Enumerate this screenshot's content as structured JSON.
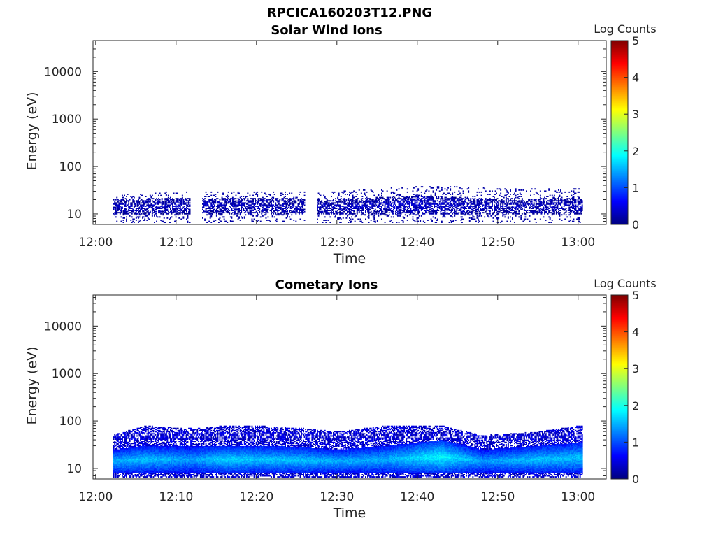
{
  "figure": {
    "title": "RPCICA160203T12.PNG"
  },
  "colormap": [
    "#00007f",
    "#0000ff",
    "#007fff",
    "#00ffff",
    "#7fff7f",
    "#ffff00",
    "#ff7f00",
    "#ff0000",
    "#7f0000"
  ],
  "chart_data": [
    {
      "type": "heatmap",
      "title": "Solar Wind Ions",
      "xlabel": "Time",
      "ylabel": "Energy (eV)",
      "x_range": [
        "11:59:40",
        "13:03:30"
      ],
      "x_ticks": [
        "12:00",
        "12:10",
        "12:20",
        "12:30",
        "12:40",
        "12:50",
        "13:00"
      ],
      "y_scale": "log",
      "y_range": [
        6,
        45000
      ],
      "y_ticks": [
        10,
        100,
        1000,
        10000
      ],
      "y_tick_labels": [
        "10",
        "100",
        "1000",
        "10000"
      ],
      "colorbar": {
        "label": "Log Counts",
        "range": [
          0,
          5
        ],
        "ticks": [
          "0",
          "1",
          "2",
          "3",
          "4",
          "5"
        ]
      },
      "data_time_span": [
        "12:02:10",
        "13:00:30"
      ],
      "gaps": [
        [
          "12:11:40",
          "12:13:10"
        ],
        [
          "12:26:00",
          "12:27:30"
        ]
      ],
      "profile": [
        {
          "t": "12:02",
          "core_low_eV": 10,
          "core_high_eV": 20,
          "top_eV": 25,
          "peak_log_counts": 0.3
        },
        {
          "t": "12:10",
          "core_low_eV": 10,
          "core_high_eV": 22,
          "top_eV": 30,
          "peak_log_counts": 0.3
        },
        {
          "t": "12:20",
          "core_low_eV": 10,
          "core_high_eV": 22,
          "top_eV": 30,
          "peak_log_counts": 0.3
        },
        {
          "t": "12:30",
          "core_low_eV": 10,
          "core_high_eV": 20,
          "top_eV": 30,
          "peak_log_counts": 0.3
        },
        {
          "t": "12:40",
          "core_low_eV": 10,
          "core_high_eV": 25,
          "top_eV": 40,
          "peak_log_counts": 0.4
        },
        {
          "t": "12:50",
          "core_low_eV": 10,
          "core_high_eV": 20,
          "top_eV": 35,
          "peak_log_counts": 0.3
        },
        {
          "t": "13:00",
          "core_low_eV": 10,
          "core_high_eV": 22,
          "top_eV": 35,
          "peak_log_counts": 0.3
        }
      ]
    },
    {
      "type": "heatmap",
      "title": "Cometary Ions",
      "xlabel": "Time",
      "ylabel": "Energy (eV)",
      "x_range": [
        "11:59:40",
        "13:03:30"
      ],
      "x_ticks": [
        "12:00",
        "12:10",
        "12:20",
        "12:30",
        "12:40",
        "12:50",
        "13:00"
      ],
      "y_scale": "log",
      "y_range": [
        6,
        45000
      ],
      "y_ticks": [
        10,
        100,
        1000,
        10000
      ],
      "y_tick_labels": [
        "10",
        "100",
        "1000",
        "10000"
      ],
      "colorbar": {
        "label": "Log Counts",
        "range": [
          0,
          5
        ],
        "ticks": [
          "0",
          "1",
          "2",
          "3",
          "4",
          "5"
        ]
      },
      "data_time_span": [
        "12:02:10",
        "13:00:30"
      ],
      "gaps": [],
      "profile": [
        {
          "t": "12:02",
          "core_low_eV": 8,
          "core_high_eV": 25,
          "top_eV": 50,
          "peak_log_counts": 1.5
        },
        {
          "t": "12:06",
          "core_low_eV": 8,
          "core_high_eV": 30,
          "top_eV": 80,
          "peak_log_counts": 1.6
        },
        {
          "t": "12:12",
          "core_low_eV": 8,
          "core_high_eV": 30,
          "top_eV": 70,
          "peak_log_counts": 1.4
        },
        {
          "t": "12:16",
          "core_low_eV": 8,
          "core_high_eV": 30,
          "top_eV": 80,
          "peak_log_counts": 1.7
        },
        {
          "t": "12:20",
          "core_low_eV": 8,
          "core_high_eV": 30,
          "top_eV": 80,
          "peak_log_counts": 1.6
        },
        {
          "t": "12:26",
          "core_low_eV": 8,
          "core_high_eV": 28,
          "top_eV": 70,
          "peak_log_counts": 1.6
        },
        {
          "t": "12:30",
          "core_low_eV": 8,
          "core_high_eV": 25,
          "top_eV": 60,
          "peak_log_counts": 1.5
        },
        {
          "t": "12:36",
          "core_low_eV": 8,
          "core_high_eV": 30,
          "top_eV": 80,
          "peak_log_counts": 1.5
        },
        {
          "t": "12:43",
          "core_low_eV": 8,
          "core_high_eV": 40,
          "top_eV": 80,
          "peak_log_counts": 1.9
        },
        {
          "t": "12:48",
          "core_low_eV": 8,
          "core_high_eV": 25,
          "top_eV": 50,
          "peak_log_counts": 1.4
        },
        {
          "t": "12:55",
          "core_low_eV": 8,
          "core_high_eV": 30,
          "top_eV": 60,
          "peak_log_counts": 1.6
        },
        {
          "t": "13:00",
          "core_low_eV": 8,
          "core_high_eV": 35,
          "top_eV": 80,
          "peak_log_counts": 1.6
        }
      ]
    }
  ]
}
